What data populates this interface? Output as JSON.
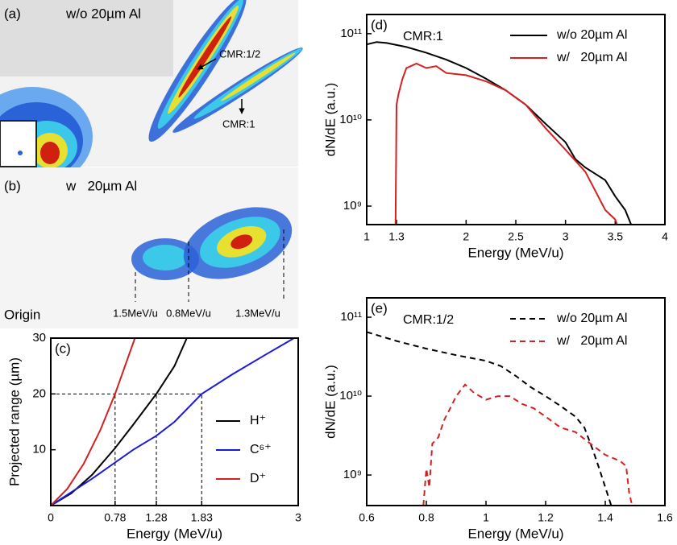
{
  "panels": [
    {
      "label": "(a)",
      "title": "w/o 20µm Al",
      "annotations": [
        "CMR:1/2",
        "CMR:1"
      ]
    },
    {
      "label": "(b)",
      "title": "w   20µm Al",
      "annotations": [
        "Origin",
        "1.5MeV/u",
        "0.8MeV/u",
        "1.3MeV/u"
      ]
    }
  ],
  "chart_data": [
    {
      "type": "line",
      "label": "(c)",
      "x_label": "Energy (MeV/u)",
      "y_label": "Projected range (µm)",
      "xlim": [
        0,
        3
      ],
      "ylim": [
        0,
        30
      ],
      "xticks": [
        0,
        0.78,
        1.28,
        1.83,
        3
      ],
      "yticks": [
        10,
        20,
        30
      ],
      "guide_y": 20,
      "log_y": false,
      "dashed": false,
      "legend": "right",
      "series": [
        {
          "name": "H⁺",
          "color": "#000000",
          "x": [
            0,
            0.25,
            0.5,
            0.78,
            1.0,
            1.28,
            1.5,
            1.65
          ],
          "values": [
            0,
            2.2,
            5.5,
            10.3,
            14.5,
            20,
            25,
            30
          ]
        },
        {
          "name": "C⁶⁺",
          "color": "#1a1ad6",
          "x": [
            0,
            0.5,
            1.0,
            1.28,
            1.5,
            1.83,
            2.2,
            2.6,
            2.95
          ],
          "values": [
            0,
            4.8,
            10,
            12.5,
            15,
            20,
            23.5,
            27,
            30
          ]
        },
        {
          "name": "D⁺",
          "color": "#d42020",
          "x": [
            0,
            0.2,
            0.4,
            0.6,
            0.78,
            0.9,
            1.02
          ],
          "values": [
            0,
            3,
            7.5,
            13.5,
            20,
            25,
            30
          ]
        }
      ]
    },
    {
      "type": "line",
      "label": "(d)",
      "annotation": "CMR:1",
      "x_label": "Energy (MeV/u)",
      "y_label": "dN/dE (a.u.)",
      "xlim": [
        1,
        4
      ],
      "ylim": [
        610000000,
        167000000000
      ],
      "xticks": [
        1,
        1.3,
        2,
        2.5,
        3,
        3.5,
        4
      ],
      "yticks": [
        {
          "value": 1000000000,
          "label": "10⁹"
        },
        {
          "value": 10000000000,
          "label": "10¹⁰"
        },
        {
          "value": 100000000000,
          "label": "10¹¹"
        }
      ],
      "log_y": true,
      "dashed": false,
      "legend": "upper right",
      "series": [
        {
          "name": "w/o 20µm Al",
          "color": "#000000",
          "x": [
            1.0,
            1.1,
            1.2,
            1.4,
            1.6,
            1.8,
            2.0,
            2.2,
            2.4,
            2.6,
            2.8,
            3.0,
            3.1,
            3.2,
            3.4,
            3.5,
            3.6,
            3.66
          ],
          "values": [
            75000000000,
            80000000000,
            78000000000,
            70000000000,
            60000000000,
            50000000000,
            40000000000,
            30000000000,
            22000000000,
            15000000000,
            9000000000,
            5500000000,
            3500000000,
            2800000000,
            2000000000,
            1300000000,
            900000000,
            610000000
          ]
        },
        {
          "name": "w/   20µm Al",
          "color": "#d42020",
          "x": [
            1.29,
            1.3,
            1.32,
            1.36,
            1.4,
            1.5,
            1.6,
            1.7,
            1.8,
            2.0,
            2.2,
            2.4,
            2.6,
            2.8,
            3.0,
            3.2,
            3.3,
            3.4,
            3.5,
            3.52
          ],
          "values": [
            610000000,
            15000000000,
            20000000000,
            30000000000,
            40000000000,
            45000000000,
            40000000000,
            42000000000,
            35000000000,
            33000000000,
            28000000000,
            22000000000,
            15000000000,
            8000000000,
            4500000000,
            2500000000,
            1500000000,
            900000000,
            700000000,
            610000000
          ]
        }
      ]
    },
    {
      "type": "line",
      "label": "(e)",
      "annotation": "CMR:1/2",
      "x_label": "Energy (MeV/u)",
      "y_label": "dN/dE (a.u.)",
      "xlim": [
        0.6,
        1.6
      ],
      "ylim": [
        410000000,
        176000000000
      ],
      "xticks": [
        0.6,
        0.8,
        1,
        1.2,
        1.4,
        1.6
      ],
      "yticks": [
        {
          "value": 1000000000,
          "label": "10⁹"
        },
        {
          "value": 10000000000,
          "label": "10¹⁰"
        },
        {
          "value": 100000000000,
          "label": "10¹¹"
        }
      ],
      "log_y": true,
      "dashed": true,
      "legend": "upper right",
      "series": [
        {
          "name": "w/o 20µm Al",
          "color": "#000000",
          "x": [
            0.6,
            0.7,
            0.8,
            0.9,
            1.0,
            1.05,
            1.1,
            1.15,
            1.2,
            1.25,
            1.3,
            1.33,
            1.36,
            1.38,
            1.4,
            1.42
          ],
          "values": [
            65000000000,
            50000000000,
            40000000000,
            33000000000,
            28000000000,
            24000000000,
            18000000000,
            13000000000,
            10000000000,
            7500000000,
            5500000000,
            4000000000,
            2000000000,
            1200000000,
            700000000,
            410000000
          ]
        },
        {
          "name": "w/   20µm Al",
          "color": "#d42020",
          "x": [
            0.79,
            0.8,
            0.81,
            0.82,
            0.84,
            0.86,
            0.88,
            0.9,
            0.93,
            0.96,
            1.0,
            1.04,
            1.08,
            1.12,
            1.16,
            1.2,
            1.25,
            1.3,
            1.35,
            1.4,
            1.45,
            1.47,
            1.48,
            1.49
          ],
          "values": [
            410000000,
            1200000000,
            700000000,
            2500000000,
            3000000000,
            5000000000,
            7000000000,
            10000000000,
            14000000000,
            11000000000,
            9000000000,
            10000000000,
            10000000000,
            8000000000,
            7000000000,
            5500000000,
            4000000000,
            3500000000,
            2500000000,
            1800000000,
            1500000000,
            1300000000,
            600000000,
            410000000
          ]
        }
      ]
    }
  ]
}
